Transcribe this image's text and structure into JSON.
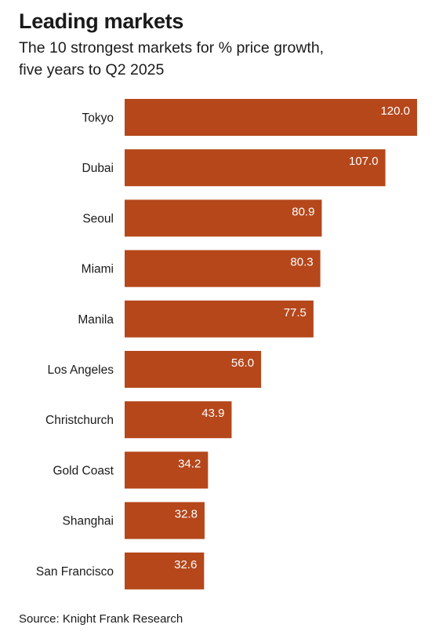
{
  "header": {
    "title": "Leading markets",
    "subtitle_line1": "The 10 strongest markets for % price growth,",
    "subtitle_line2": "five years to Q2 2025"
  },
  "footer": {
    "source": "Source: Knight Frank Research"
  },
  "colors": {
    "bar": "#B5471B",
    "bar_label": "#ffffff",
    "text": "#1a1a1a"
  },
  "chart_data": {
    "type": "bar",
    "orientation": "horizontal",
    "title": "Leading markets",
    "subtitle": "The 10 strongest markets for % price growth, five years to Q2 2025",
    "categories": [
      "Tokyo",
      "Dubai",
      "Seoul",
      "Miami",
      "Manila",
      "Los Angeles",
      "Christchurch",
      "Gold Coast",
      "Shanghai",
      "San Francisco"
    ],
    "values": [
      120.0,
      107.0,
      80.9,
      80.3,
      77.5,
      56.0,
      43.9,
      34.2,
      32.8,
      32.6
    ],
    "value_labels": [
      "120.0",
      "107.0",
      "80.9",
      "80.3",
      "77.5",
      "56.0",
      "43.9",
      "34.2",
      "32.8",
      "32.6"
    ],
    "xlim": [
      0,
      120
    ],
    "grid": false,
    "legend": "none"
  }
}
